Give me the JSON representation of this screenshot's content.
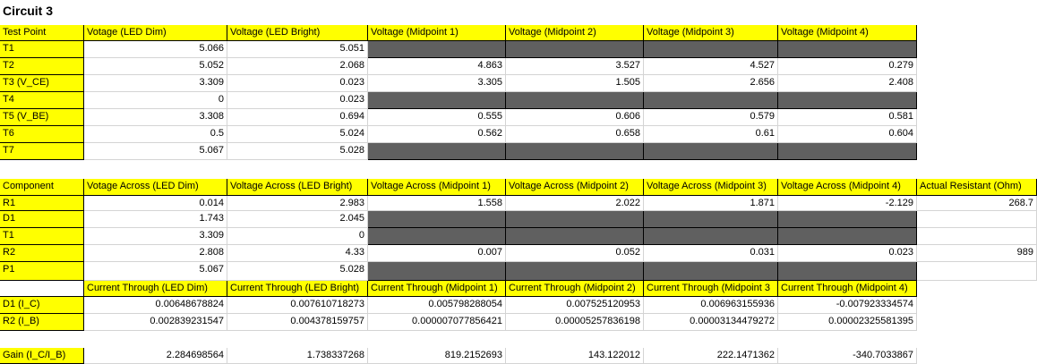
{
  "title": "Circuit 3",
  "colors": {
    "header_fill": "#ffff00",
    "blocked_fill": "#606060"
  },
  "table1": {
    "headers": [
      "Test Point",
      "Votage (LED Dim)",
      "Voltage (LED Bright)",
      "Voltage (Midpoint 1)",
      "Voltage (Midpoint 2)",
      "Voltage (Midpoint 3)",
      "Voltage (Midpoint 4)"
    ],
    "rows": [
      [
        "T1",
        "5.066",
        "5.051",
        "",
        "",
        "",
        ""
      ],
      [
        "T2",
        "5.052",
        "2.068",
        "4.863",
        "3.527",
        "4.527",
        "0.279"
      ],
      [
        "T3 (V_CE)",
        "3.309",
        "0.023",
        "3.305",
        "1.505",
        "2.656",
        "2.408"
      ],
      [
        "T4",
        "0",
        "0.023",
        "",
        "",
        "",
        ""
      ],
      [
        "T5 (V_BE)",
        "3.308",
        "0.694",
        "0.555",
        "0.606",
        "0.579",
        "0.581"
      ],
      [
        "T6",
        "0.5",
        "5.024",
        "0.562",
        "0.658",
        "0.61",
        "0.604"
      ],
      [
        "T7",
        "5.067",
        "5.028",
        "",
        "",
        "",
        ""
      ]
    ]
  },
  "table2": {
    "headers": [
      "Component",
      "Votage Across (LED Dim)",
      "Voltage Across (LED Bright)",
      "Voltage Across (Midpoint 1)",
      "Voltage Across (Midpoint 2)",
      "Voltage Across (Midpoint 3)",
      "Voltage Across (Midpoint 4)",
      "Actual Resistant (Ohm)"
    ],
    "rows": [
      [
        "R1",
        "0.014",
        "2.983",
        "1.558",
        "2.022",
        "1.871",
        "-2.129",
        "268.7"
      ],
      [
        "D1",
        "1.743",
        "2.045",
        "",
        "",
        "",
        "",
        ""
      ],
      [
        "T1",
        "3.309",
        "0",
        "",
        "",
        "",
        "",
        ""
      ],
      [
        "R2",
        "2.808",
        "4.33",
        "0.007",
        "0.052",
        "0.031",
        "0.023",
        "989"
      ],
      [
        "P1",
        "5.067",
        "5.028",
        "",
        "",
        "",
        "",
        ""
      ]
    ]
  },
  "table3": {
    "headers": [
      "",
      "Current Through (LED Dim)",
      "Current Through (LED Bright)",
      "Current Through (Midpoint 1)",
      "Current Through (Midpoint 2)",
      "Current Through (Midpoint 3",
      "Current Through (Midpoint 4)"
    ],
    "rows": [
      [
        "D1 (I_C)",
        "0.00648678824",
        "0.007610718273",
        "0.005798288054",
        "0.007525120953",
        "0.006963155936",
        "-0.007923334574"
      ],
      [
        "R2 (I_B)",
        "0.002839231547",
        "0.004378159757",
        "0.000007077856421",
        "0.00005257836198",
        "0.00003134479272",
        "0.00002325581395"
      ]
    ]
  },
  "gain": [
    "Gain (I_C/I_B)",
    "2.284698564",
    "1.738337268",
    "819.2152693",
    "143.122012",
    "222.1471362",
    "-340.7033867"
  ]
}
